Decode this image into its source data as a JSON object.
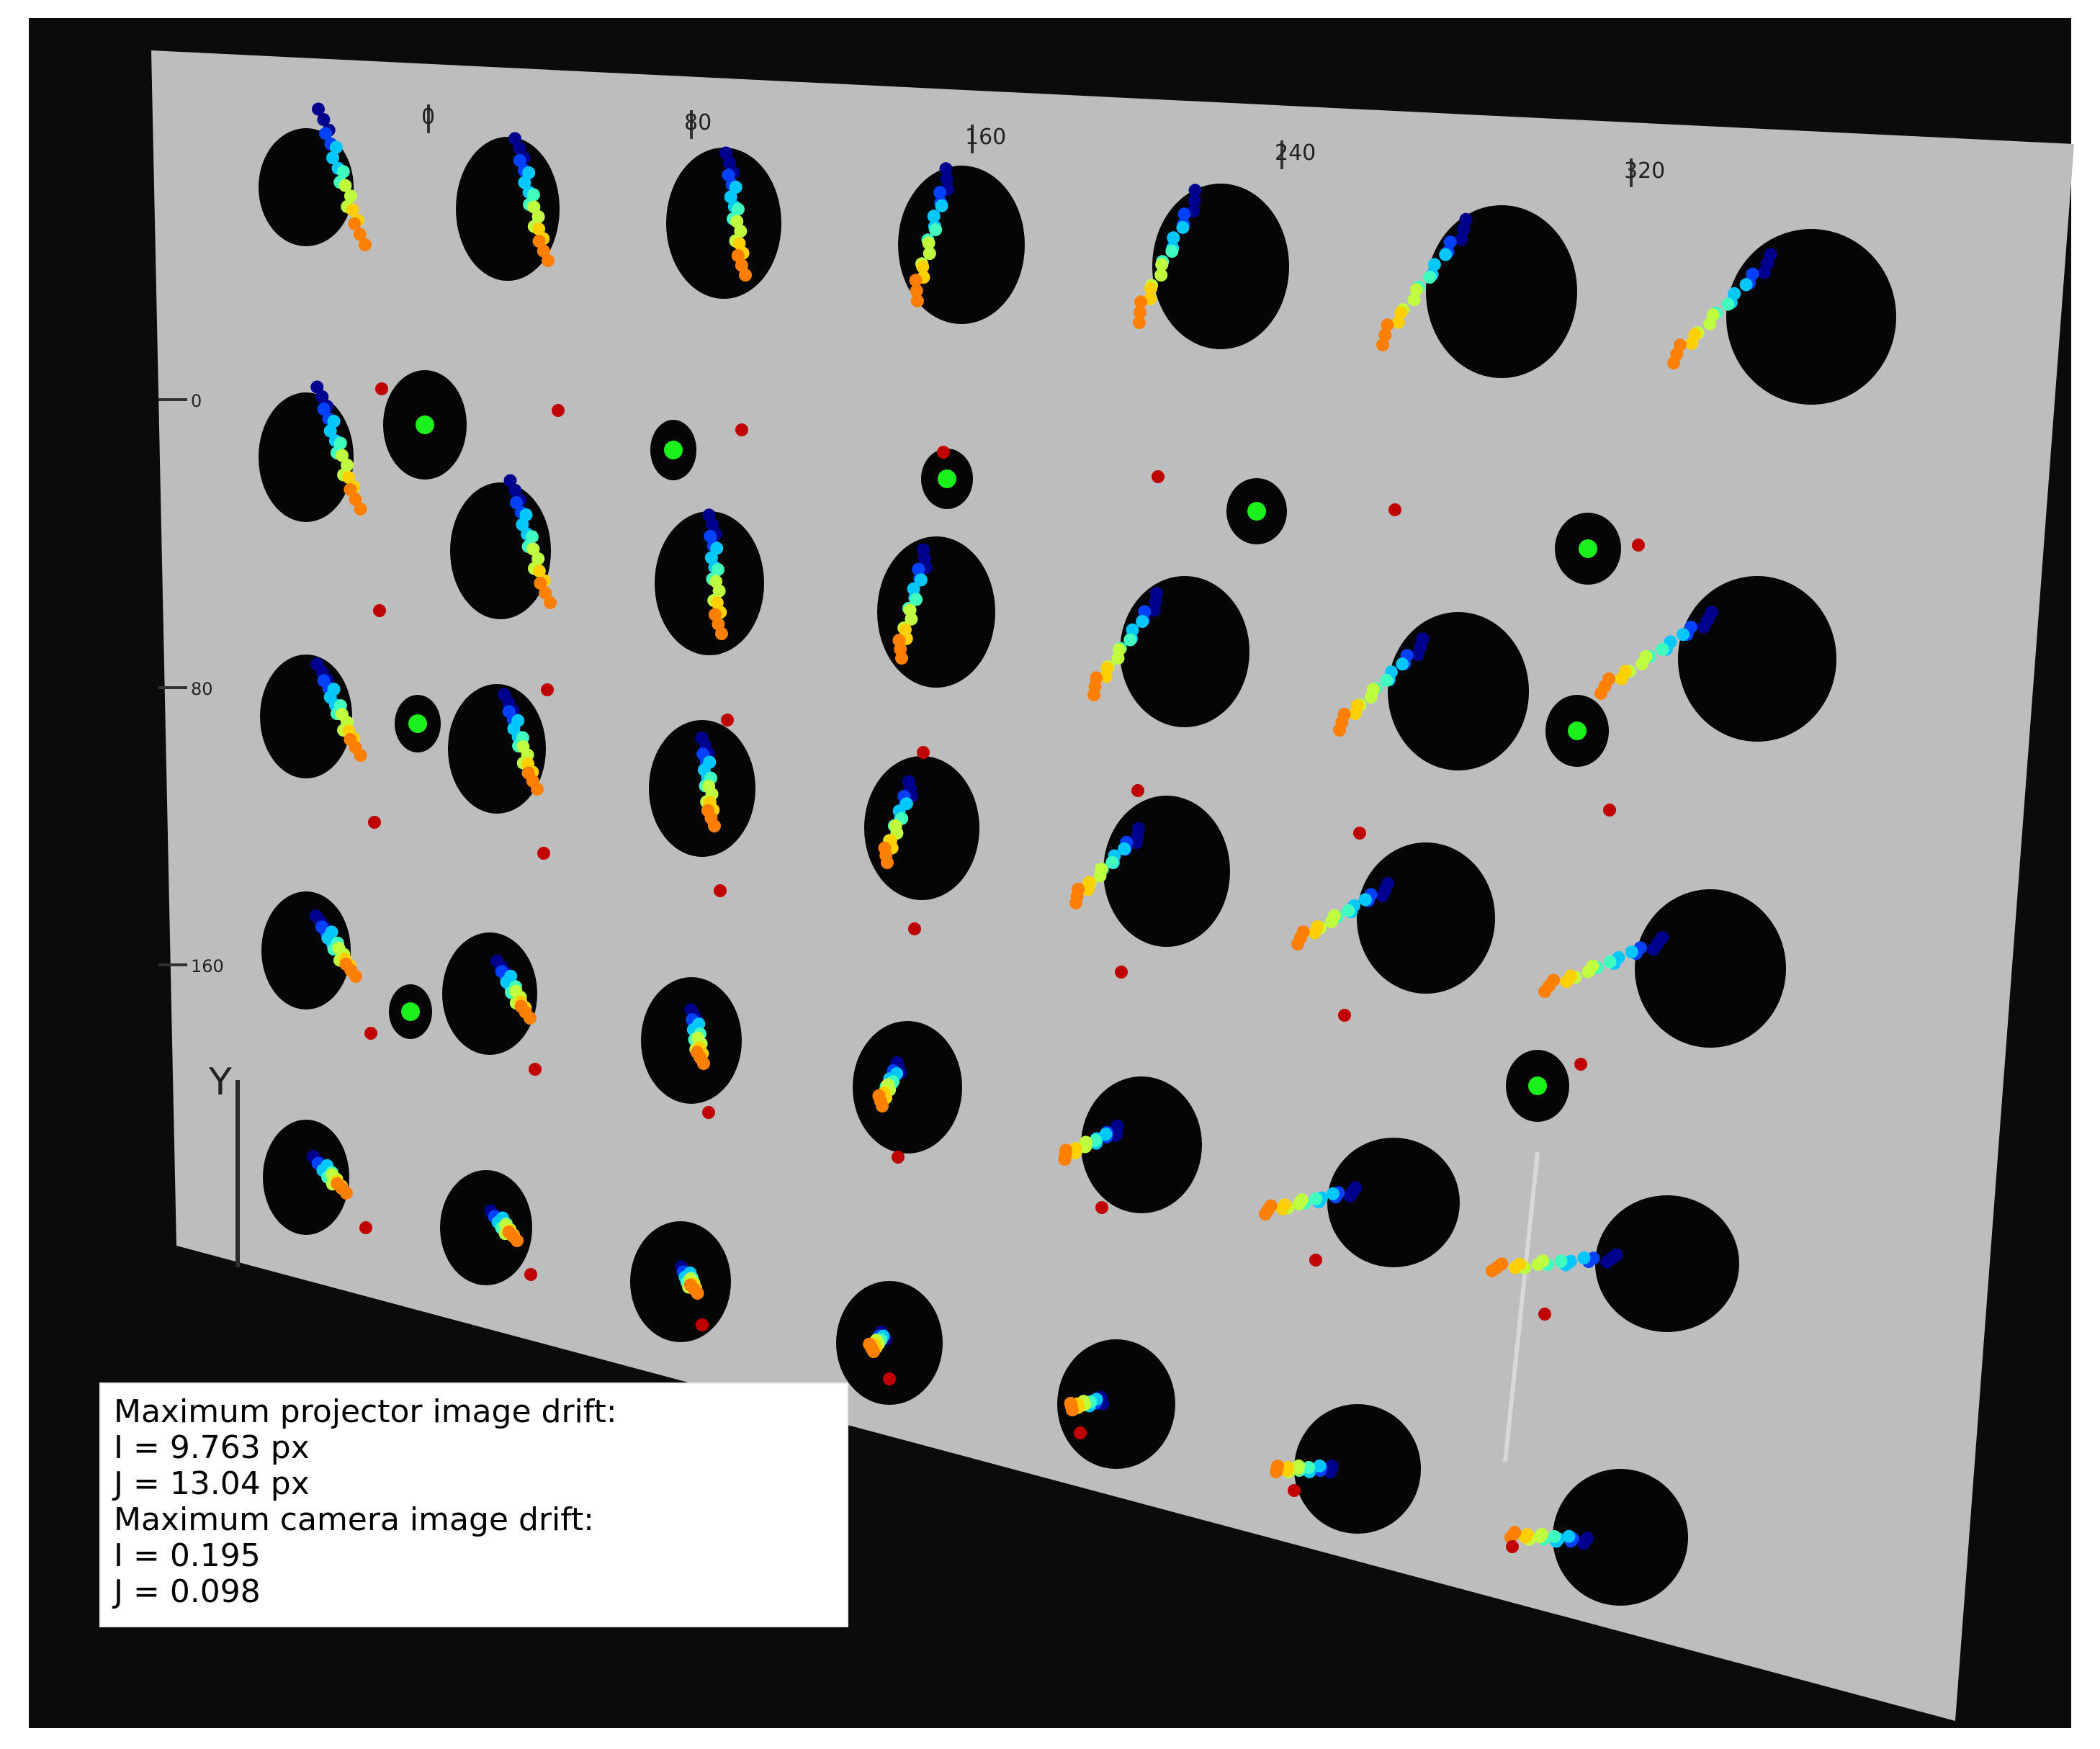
{
  "image": {
    "description_type": "projector calibration target photo",
    "colors": {
      "background": "#0b0b0b",
      "board": "#bdbdbd",
      "target_dot": "#050505",
      "fiducial_center": "#1cf01c",
      "reference_point": "#c00000",
      "drift_colormap": [
        "#00008f",
        "#0040ff",
        "#00c8ff",
        "#40ffbf",
        "#c0ff40",
        "#ffd000",
        "#ff8000"
      ]
    }
  },
  "axes": {
    "x_ticks": [
      "0",
      "80",
      "160",
      "240",
      "320"
    ],
    "y_ticks": [
      "0",
      "80",
      "160"
    ],
    "y_label": "Y"
  },
  "drift_box": {
    "lines": [
      "Maximum projector image drift:",
      "I = 9.763 px",
      "J = 13.04 px",
      "Maximum camera image drift:",
      "I = 0.195",
      "J = 0.098"
    ]
  }
}
